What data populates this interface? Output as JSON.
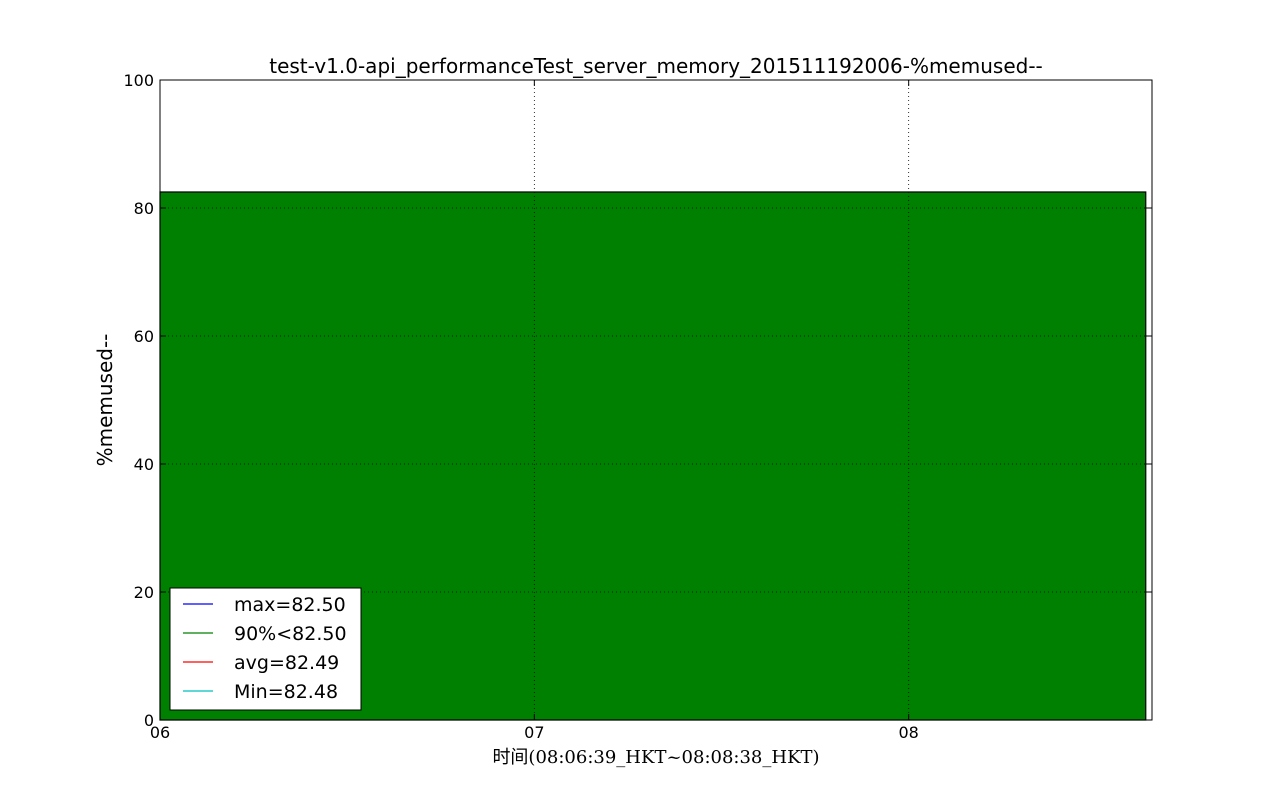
{
  "chart_data": {
    "type": "area",
    "title": "test-v1.0-api_performanceTest_server_memory_201511192006-%memused--",
    "xlabel": "时间(08:06:39_HKT~08:08:38_HKT)",
    "ylabel": "%memused--",
    "x_ticks": [
      "06",
      "07",
      "08"
    ],
    "y_ticks": [
      "0",
      "20",
      "40",
      "60",
      "80",
      "100"
    ],
    "ylim": [
      0,
      100
    ],
    "x_range_minutes": [
      6.0,
      8.65
    ],
    "grid": true,
    "legend_position": "lower-left",
    "series": [
      {
        "name": "%memused--",
        "color": "#008000",
        "fill": true,
        "x": [
          "08:06:00",
          "08:06:01",
          "08:08:38"
        ],
        "values": [
          82.5,
          82.5,
          82.5
        ]
      }
    ],
    "legend": [
      {
        "label": "max=82.50",
        "color": "#0000ff"
      },
      {
        "label": "90%<82.50",
        "color": "#008000"
      },
      {
        "label": "avg=82.49",
        "color": "#ff0000"
      },
      {
        "label": "Min=82.48",
        "color": "#00bfbf"
      }
    ]
  }
}
